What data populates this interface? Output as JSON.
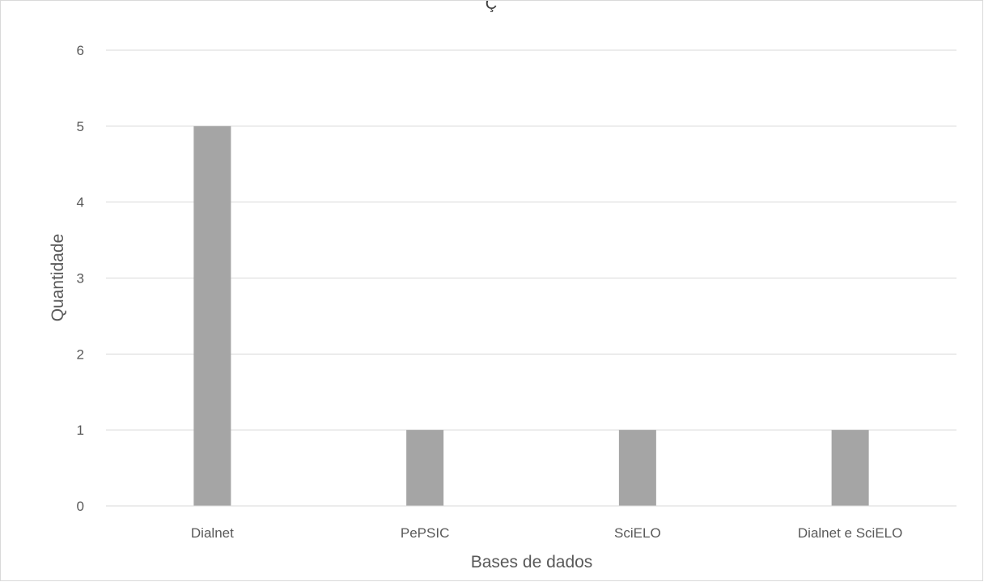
{
  "chart_data": {
    "type": "bar",
    "title": "Ç",
    "xlabel": "Bases de dados",
    "ylabel": "Quantidade",
    "categories": [
      "Dialnet",
      "PePSIC",
      "SciELO",
      "Dialnet e SciELO"
    ],
    "values": [
      5,
      1,
      1,
      1
    ],
    "ylim": [
      0,
      6
    ],
    "yticks": [
      "0",
      "1",
      "2",
      "3",
      "4",
      "5",
      "6"
    ],
    "grid": true,
    "legend": "none",
    "bar_color": "#a5a5a5",
    "grid_color": "#d9d9d9",
    "text_color": "#595959"
  }
}
